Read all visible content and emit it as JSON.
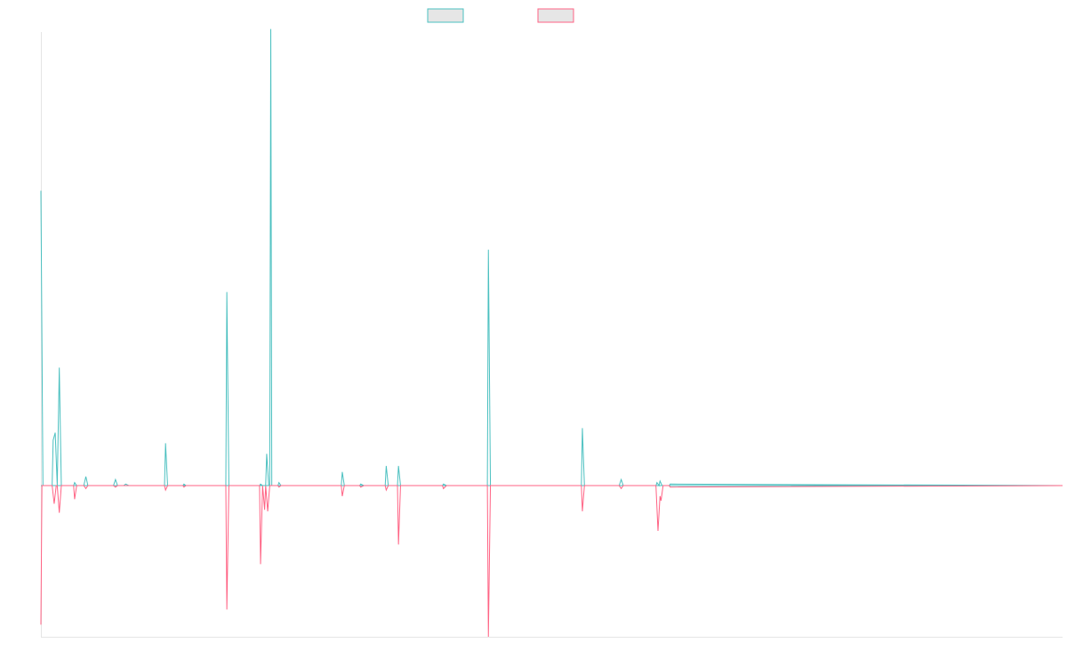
{
  "chart_data": {
    "type": "line",
    "title": "",
    "xlabel": "",
    "ylabel": "",
    "legend_position": "top-center",
    "grid": false,
    "xlim": [
      0,
      1000
    ],
    "ylim": [
      -1,
      3
    ],
    "colors": {
      "positive": "#4bc0c0",
      "negative": "#ff6384",
      "axis": "#e5e5e5"
    },
    "series": [
      {
        "name": "",
        "color": "#4bc0c0",
        "points": [
          [
            0,
            1.95
          ],
          [
            2,
            0
          ],
          [
            11,
            0
          ],
          [
            12,
            0.3
          ],
          [
            14,
            0.35
          ],
          [
            16,
            0
          ],
          [
            18,
            0.78
          ],
          [
            20,
            0
          ],
          [
            32,
            0
          ],
          [
            33,
            0.02
          ],
          [
            35,
            0
          ],
          [
            42,
            0
          ],
          [
            44,
            0.06
          ],
          [
            46,
            0
          ],
          [
            71,
            0
          ],
          [
            73,
            0.04
          ],
          [
            75,
            0
          ],
          [
            81,
            0
          ],
          [
            83,
            0.01
          ],
          [
            86,
            0
          ],
          [
            121,
            0
          ],
          [
            122,
            0.28
          ],
          [
            124,
            0
          ],
          [
            139,
            0
          ],
          [
            140,
            0.01
          ],
          [
            142,
            0
          ],
          [
            181,
            0
          ],
          [
            182,
            1.28
          ],
          [
            184,
            0
          ],
          [
            214,
            0
          ],
          [
            215,
            0.01
          ],
          [
            217,
            0
          ],
          [
            220,
            0
          ],
          [
            221,
            0.21
          ],
          [
            223,
            0
          ],
          [
            224,
            0
          ],
          [
            225,
            3.02
          ],
          [
            226,
            0
          ],
          [
            232,
            0
          ],
          [
            233,
            0.02
          ],
          [
            235,
            0
          ],
          [
            294,
            0
          ],
          [
            295,
            0.09
          ],
          [
            297,
            0
          ],
          [
            312,
            0
          ],
          [
            313,
            0.01
          ],
          [
            316,
            0
          ],
          [
            337,
            0
          ],
          [
            338,
            0.13
          ],
          [
            340,
            0
          ],
          [
            349,
            0
          ],
          [
            350,
            0.13
          ],
          [
            352,
            0
          ],
          [
            393,
            0
          ],
          [
            394,
            0.01
          ],
          [
            397,
            0
          ],
          [
            437,
            0
          ],
          [
            438,
            1.56
          ],
          [
            440,
            0
          ],
          [
            529,
            0
          ],
          [
            530,
            0.38
          ],
          [
            532,
            0
          ],
          [
            566,
            0
          ],
          [
            568,
            0.04
          ],
          [
            570,
            0
          ],
          [
            602,
            0
          ],
          [
            603,
            0.02
          ],
          [
            605,
            0
          ],
          [
            606,
            0.03
          ],
          [
            608,
            0
          ],
          [
            615,
            0
          ],
          [
            616,
            0.01
          ],
          [
            1000,
            0
          ]
        ]
      },
      {
        "name": "",
        "color": "#ff6384",
        "points": [
          [
            0,
            -0.92
          ],
          [
            1,
            0
          ],
          [
            11,
            0
          ],
          [
            13,
            -0.12
          ],
          [
            15,
            0
          ],
          [
            16,
            0
          ],
          [
            18,
            -0.18
          ],
          [
            20,
            0
          ],
          [
            32,
            0
          ],
          [
            33,
            -0.09
          ],
          [
            35,
            0
          ],
          [
            42,
            0
          ],
          [
            44,
            -0.02
          ],
          [
            46,
            0
          ],
          [
            71,
            0
          ],
          [
            73,
            -0.01
          ],
          [
            75,
            0
          ],
          [
            121,
            0
          ],
          [
            122,
            -0.03
          ],
          [
            124,
            0
          ],
          [
            139,
            0
          ],
          [
            140,
            -0.01
          ],
          [
            142,
            0
          ],
          [
            181,
            0
          ],
          [
            182,
            -0.82
          ],
          [
            184,
            0
          ],
          [
            214,
            0
          ],
          [
            215,
            -0.52
          ],
          [
            217,
            0
          ],
          [
            219,
            -0.16
          ],
          [
            220,
            0
          ],
          [
            222,
            -0.17
          ],
          [
            224,
            0
          ],
          [
            232,
            0
          ],
          [
            233,
            -0.01
          ],
          [
            235,
            0
          ],
          [
            294,
            0
          ],
          [
            295,
            -0.07
          ],
          [
            297,
            0
          ],
          [
            312,
            0
          ],
          [
            313,
            -0.01
          ],
          [
            316,
            0
          ],
          [
            337,
            0
          ],
          [
            338,
            -0.03
          ],
          [
            340,
            0
          ],
          [
            349,
            0
          ],
          [
            350,
            -0.39
          ],
          [
            352,
            0
          ],
          [
            393,
            0
          ],
          [
            394,
            -0.02
          ],
          [
            397,
            0
          ],
          [
            437,
            0
          ],
          [
            438,
            -1.0
          ],
          [
            440,
            0
          ],
          [
            529,
            0
          ],
          [
            530,
            -0.17
          ],
          [
            532,
            0
          ],
          [
            566,
            0
          ],
          [
            568,
            -0.02
          ],
          [
            570,
            0
          ],
          [
            602,
            0
          ],
          [
            604,
            -0.3
          ],
          [
            606,
            -0.07
          ],
          [
            607,
            -0.1
          ],
          [
            609,
            0
          ],
          [
            615,
            0
          ],
          [
            616,
            -0.01
          ],
          [
            1000,
            0
          ]
        ]
      }
    ]
  }
}
